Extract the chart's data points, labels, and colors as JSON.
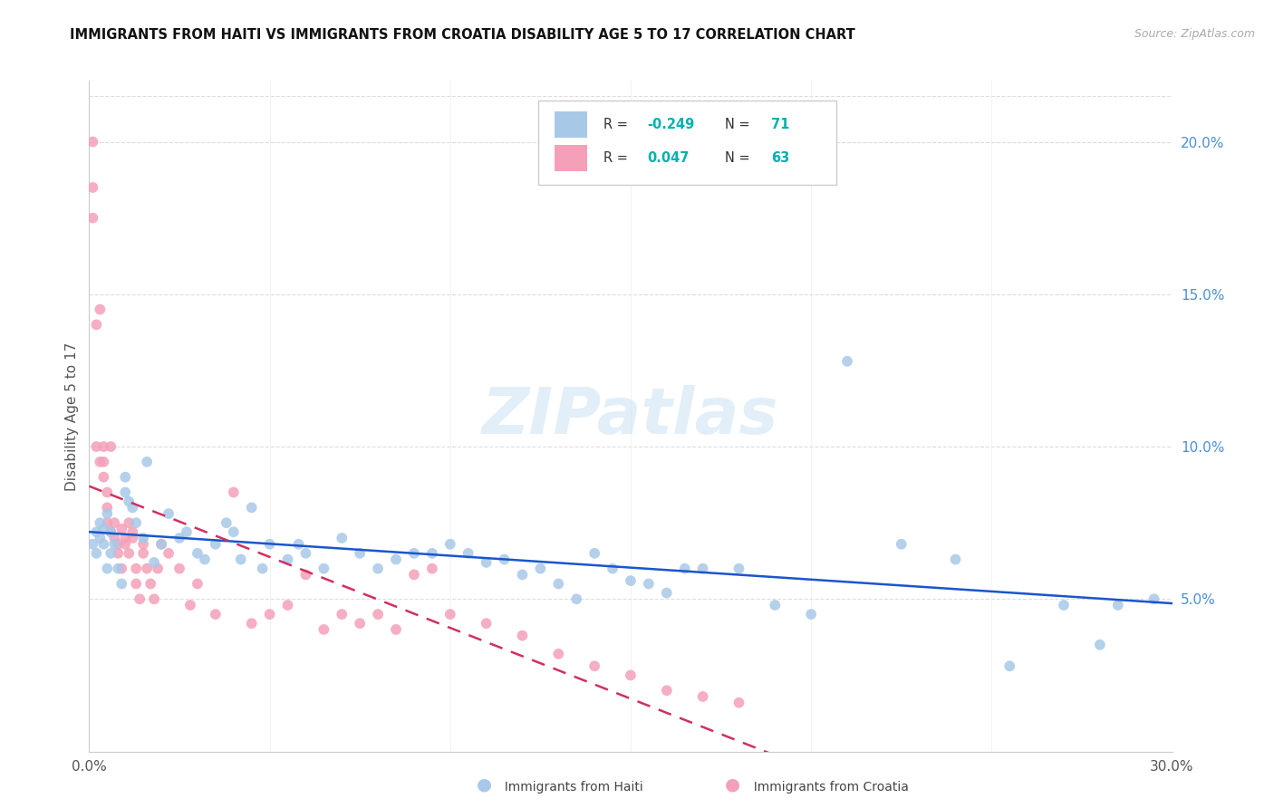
{
  "title": "IMMIGRANTS FROM HAITI VS IMMIGRANTS FROM CROATIA DISABILITY AGE 5 TO 17 CORRELATION CHART",
  "source": "Source: ZipAtlas.com",
  "ylabel": "Disability Age 5 to 17",
  "xlim": [
    0.0,
    0.3
  ],
  "ylim": [
    0.0,
    0.22
  ],
  "haiti_color": "#a8c8e8",
  "croatia_color": "#f4a0b8",
  "haiti_line_color": "#1a56cc",
  "croatia_line_color": "#d03060",
  "legend_haiti_R": "-0.249",
  "legend_haiti_N": "71",
  "legend_croatia_R": "0.047",
  "legend_croatia_N": "63",
  "watermark": "ZIPatlas",
  "haiti_x": [
    0.001,
    0.002,
    0.002,
    0.003,
    0.003,
    0.004,
    0.004,
    0.005,
    0.005,
    0.006,
    0.006,
    0.007,
    0.008,
    0.009,
    0.01,
    0.01,
    0.011,
    0.012,
    0.013,
    0.015,
    0.016,
    0.018,
    0.02,
    0.022,
    0.025,
    0.027,
    0.03,
    0.032,
    0.035,
    0.038,
    0.04,
    0.042,
    0.045,
    0.048,
    0.05,
    0.055,
    0.058,
    0.06,
    0.065,
    0.07,
    0.075,
    0.08,
    0.085,
    0.09,
    0.095,
    0.1,
    0.105,
    0.11,
    0.115,
    0.12,
    0.125,
    0.13,
    0.135,
    0.14,
    0.145,
    0.15,
    0.155,
    0.16,
    0.165,
    0.17,
    0.18,
    0.19,
    0.2,
    0.21,
    0.225,
    0.24,
    0.255,
    0.27,
    0.285,
    0.295,
    0.28
  ],
  "haiti_y": [
    0.068,
    0.072,
    0.065,
    0.07,
    0.075,
    0.068,
    0.073,
    0.078,
    0.06,
    0.065,
    0.072,
    0.068,
    0.06,
    0.055,
    0.09,
    0.085,
    0.082,
    0.08,
    0.075,
    0.07,
    0.095,
    0.062,
    0.068,
    0.078,
    0.07,
    0.072,
    0.065,
    0.063,
    0.068,
    0.075,
    0.072,
    0.063,
    0.08,
    0.06,
    0.068,
    0.063,
    0.068,
    0.065,
    0.06,
    0.07,
    0.065,
    0.06,
    0.063,
    0.065,
    0.065,
    0.068,
    0.065,
    0.062,
    0.063,
    0.058,
    0.06,
    0.055,
    0.05,
    0.065,
    0.06,
    0.056,
    0.055,
    0.052,
    0.06,
    0.06,
    0.06,
    0.048,
    0.045,
    0.128,
    0.068,
    0.063,
    0.028,
    0.048,
    0.048,
    0.05,
    0.035
  ],
  "croatia_x": [
    0.001,
    0.001,
    0.001,
    0.002,
    0.002,
    0.003,
    0.003,
    0.004,
    0.004,
    0.004,
    0.005,
    0.005,
    0.005,
    0.006,
    0.006,
    0.007,
    0.007,
    0.008,
    0.008,
    0.009,
    0.009,
    0.01,
    0.01,
    0.011,
    0.011,
    0.012,
    0.012,
    0.013,
    0.013,
    0.014,
    0.015,
    0.015,
    0.016,
    0.017,
    0.018,
    0.019,
    0.02,
    0.022,
    0.025,
    0.028,
    0.03,
    0.035,
    0.04,
    0.045,
    0.05,
    0.06,
    0.07,
    0.08,
    0.09,
    0.1,
    0.11,
    0.12,
    0.13,
    0.14,
    0.15,
    0.16,
    0.17,
    0.18,
    0.095,
    0.085,
    0.075,
    0.065,
    0.055
  ],
  "croatia_y": [
    0.2,
    0.185,
    0.175,
    0.1,
    0.14,
    0.095,
    0.145,
    0.1,
    0.095,
    0.09,
    0.085,
    0.08,
    0.075,
    0.1,
    0.072,
    0.07,
    0.075,
    0.065,
    0.068,
    0.06,
    0.073,
    0.07,
    0.068,
    0.065,
    0.075,
    0.072,
    0.07,
    0.06,
    0.055,
    0.05,
    0.068,
    0.065,
    0.06,
    0.055,
    0.05,
    0.06,
    0.068,
    0.065,
    0.06,
    0.048,
    0.055,
    0.045,
    0.085,
    0.042,
    0.045,
    0.058,
    0.045,
    0.045,
    0.058,
    0.045,
    0.042,
    0.038,
    0.032,
    0.028,
    0.025,
    0.02,
    0.018,
    0.016,
    0.06,
    0.04,
    0.042,
    0.04,
    0.048
  ]
}
